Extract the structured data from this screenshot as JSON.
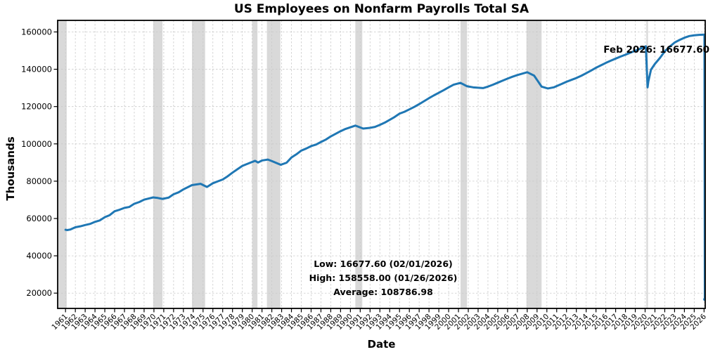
{
  "title": "US Employees on Nonfarm Payrolls Total SA",
  "annotations": {
    "last_point": "Feb 2026: 16677.60",
    "low": "Low: 16677.60 (02/01/2026)",
    "high": "High: 158558.00 (01/26/2026)",
    "average": "Average: 108786.98"
  },
  "colors": {
    "line": "#1f77b4",
    "recession_band": "#d9d9d9",
    "grid": "#c9c9c9",
    "spine": "#000000",
    "text": "#000000"
  },
  "chart_data": {
    "type": "line",
    "title": "US Employees on Nonfarm Payrolls Total SA",
    "xlabel": "Date",
    "ylabel": "Thousands",
    "legend": "none",
    "grid": true,
    "xlim": [
      1960.2,
      2026.12
    ],
    "ylim": [
      11800,
      166200
    ],
    "x_ticks": [
      1961,
      1962,
      1963,
      1964,
      1965,
      1966,
      1967,
      1968,
      1969,
      1970,
      1971,
      1972,
      1973,
      1974,
      1975,
      1976,
      1977,
      1978,
      1979,
      1980,
      1981,
      1982,
      1983,
      1984,
      1985,
      1986,
      1987,
      1988,
      1989,
      1990,
      1991,
      1992,
      1993,
      1994,
      1995,
      1996,
      1997,
      1998,
      1999,
      2000,
      2001,
      2002,
      2003,
      2004,
      2005,
      2006,
      2007,
      2008,
      2009,
      2010,
      2011,
      2012,
      2013,
      2014,
      2015,
      2016,
      2017,
      2018,
      2019,
      2020,
      2021,
      2022,
      2023,
      2024,
      2025,
      2026
    ],
    "y_ticks": [
      20000,
      40000,
      60000,
      80000,
      100000,
      120000,
      140000,
      160000
    ],
    "recession_bands": [
      [
        1960.25,
        1961.12
      ],
      [
        1969.92,
        1970.87
      ],
      [
        1973.87,
        1975.21
      ],
      [
        1980.0,
        1980.54
      ],
      [
        1981.5,
        1982.87
      ],
      [
        1990.5,
        1991.21
      ],
      [
        2001.21,
        2001.87
      ],
      [
        2007.92,
        2009.46
      ],
      [
        2020.12,
        2020.29
      ]
    ],
    "series": [
      {
        "name": "US Employees on Nonfarm Payrolls Total SA",
        "units": "thousands",
        "points": [
          [
            1961.0,
            53950
          ],
          [
            1961.17,
            53800
          ],
          [
            1961.5,
            54100
          ],
          [
            1962.0,
            55300
          ],
          [
            1962.5,
            55800
          ],
          [
            1963.0,
            56500
          ],
          [
            1963.5,
            57100
          ],
          [
            1964.0,
            58200
          ],
          [
            1964.5,
            59000
          ],
          [
            1965.0,
            60700
          ],
          [
            1965.5,
            61800
          ],
          [
            1966.0,
            63900
          ],
          [
            1966.5,
            64700
          ],
          [
            1967.0,
            65700
          ],
          [
            1967.5,
            66200
          ],
          [
            1968.0,
            67900
          ],
          [
            1968.5,
            68800
          ],
          [
            1969.0,
            70100
          ],
          [
            1969.92,
            71300
          ],
          [
            1970.4,
            71000
          ],
          [
            1970.87,
            70500
          ],
          [
            1971.5,
            71200
          ],
          [
            1972.0,
            73000
          ],
          [
            1972.5,
            74000
          ],
          [
            1973.0,
            75600
          ],
          [
            1973.87,
            77900
          ],
          [
            1974.75,
            78600
          ],
          [
            1975.4,
            76900
          ],
          [
            1976.0,
            78900
          ],
          [
            1976.5,
            79900
          ],
          [
            1977.0,
            80900
          ],
          [
            1977.5,
            82600
          ],
          [
            1978.0,
            84600
          ],
          [
            1978.5,
            86400
          ],
          [
            1979.0,
            88200
          ],
          [
            1979.8,
            89900
          ],
          [
            1980.3,
            90900
          ],
          [
            1980.6,
            90000
          ],
          [
            1981.0,
            91100
          ],
          [
            1981.6,
            91600
          ],
          [
            1982.0,
            90800
          ],
          [
            1982.9,
            88800
          ],
          [
            1983.5,
            89900
          ],
          [
            1984.0,
            92700
          ],
          [
            1984.5,
            94400
          ],
          [
            1985.0,
            96400
          ],
          [
            1985.5,
            97500
          ],
          [
            1986.0,
            98800
          ],
          [
            1986.5,
            99600
          ],
          [
            1987.0,
            101000
          ],
          [
            1987.5,
            102300
          ],
          [
            1988.0,
            104000
          ],
          [
            1988.5,
            105400
          ],
          [
            1989.0,
            106800
          ],
          [
            1989.5,
            108000
          ],
          [
            1990.5,
            109800
          ],
          [
            1991.3,
            108200
          ],
          [
            1992.0,
            108600
          ],
          [
            1992.5,
            109100
          ],
          [
            1993.0,
            110200
          ],
          [
            1993.5,
            111400
          ],
          [
            1994.0,
            112900
          ],
          [
            1994.5,
            114400
          ],
          [
            1995.0,
            116200
          ],
          [
            1995.5,
            117200
          ],
          [
            1996.0,
            118500
          ],
          [
            1996.5,
            119800
          ],
          [
            1997.0,
            121300
          ],
          [
            1997.5,
            122900
          ],
          [
            1998.0,
            124500
          ],
          [
            1998.5,
            126000
          ],
          [
            1999.0,
            127400
          ],
          [
            1999.5,
            128800
          ],
          [
            2000.0,
            130300
          ],
          [
            2000.5,
            131700
          ],
          [
            2001.2,
            132700
          ],
          [
            2001.87,
            130900
          ],
          [
            2002.5,
            130300
          ],
          [
            2003.5,
            129900
          ],
          [
            2004.0,
            130700
          ],
          [
            2004.5,
            131700
          ],
          [
            2005.0,
            132800
          ],
          [
            2005.5,
            133900
          ],
          [
            2006.0,
            135000
          ],
          [
            2006.5,
            136000
          ],
          [
            2007.0,
            136900
          ],
          [
            2008.0,
            138400
          ],
          [
            2008.7,
            136600
          ],
          [
            2009.46,
            130700
          ],
          [
            2010.1,
            129700
          ],
          [
            2010.7,
            130300
          ],
          [
            2011.0,
            131000
          ],
          [
            2011.5,
            132100
          ],
          [
            2012.0,
            133300
          ],
          [
            2012.5,
            134300
          ],
          [
            2013.0,
            135300
          ],
          [
            2013.5,
            136500
          ],
          [
            2014.0,
            137900
          ],
          [
            2014.5,
            139300
          ],
          [
            2015.0,
            140800
          ],
          [
            2015.5,
            142100
          ],
          [
            2016.0,
            143400
          ],
          [
            2016.5,
            144600
          ],
          [
            2017.0,
            145700
          ],
          [
            2017.5,
            146800
          ],
          [
            2018.0,
            147800
          ],
          [
            2018.5,
            148900
          ],
          [
            2019.0,
            149900
          ],
          [
            2019.5,
            151000
          ],
          [
            2020.08,
            152300
          ],
          [
            2020.25,
            130300
          ],
          [
            2020.33,
            133500
          ],
          [
            2020.6,
            139800
          ],
          [
            2021.0,
            142900
          ],
          [
            2021.5,
            146000
          ],
          [
            2022.0,
            149600
          ],
          [
            2022.5,
            152100
          ],
          [
            2023.0,
            154300
          ],
          [
            2023.5,
            155700
          ],
          [
            2024.0,
            156900
          ],
          [
            2024.5,
            157800
          ],
          [
            2025.0,
            158200
          ],
          [
            2025.5,
            158450
          ],
          [
            2026.04,
            158558
          ],
          [
            2026.08,
            16677.6
          ]
        ]
      }
    ],
    "stats": {
      "low_value": 16677.6,
      "low_date": "02/01/2026",
      "high_value": 158558.0,
      "high_date": "01/26/2026",
      "average": 108786.98,
      "last_label": "Feb 2026",
      "last_value": 16677.6
    }
  }
}
